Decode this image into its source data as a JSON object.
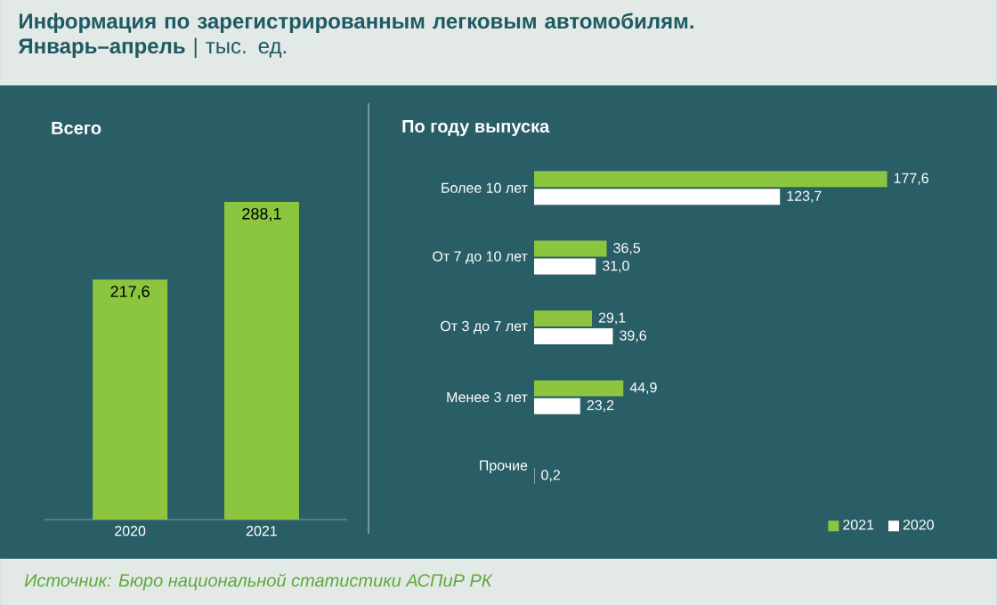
{
  "chart_data": [
    {
      "type": "bar",
      "title": "**Информация по зарегистрированным легковым автомобилям. Январь–апрель** | тыс. ед.",
      "subtitle": "Всего",
      "categories": [
        "2020",
        "2021"
      ],
      "values": [
        217.6,
        288.1
      ],
      "value_labels": [
        "217,6",
        "288,1"
      ],
      "color": "#8cc63f"
    },
    {
      "type": "bar",
      "orientation": "horizontal",
      "title": "По году выпуска",
      "categories": [
        "Более 10 лет",
        "От 7 до 10 лет",
        "От 3 до 7 лет",
        "Менее 3 лет",
        "Прочие"
      ],
      "series": [
        {
          "name": "2021",
          "color": "#8cc63f",
          "values": [
            177.6,
            36.5,
            29.1,
            44.9,
            null
          ],
          "value_labels": [
            "177,6",
            "36,5",
            "29,1",
            "44,9",
            null
          ]
        },
        {
          "name": "2020",
          "color": "#ffffff",
          "values": [
            123.7,
            31.0,
            39.6,
            23.2,
            0.2
          ],
          "value_labels": [
            "123,7",
            "31,0",
            "39,6",
            "23,2",
            "0,2"
          ]
        }
      ],
      "legend": "bottom right",
      "annotations": [
        "Источник: Бюро национальной статистики АСПиР РК"
      ]
    }
  ]
}
